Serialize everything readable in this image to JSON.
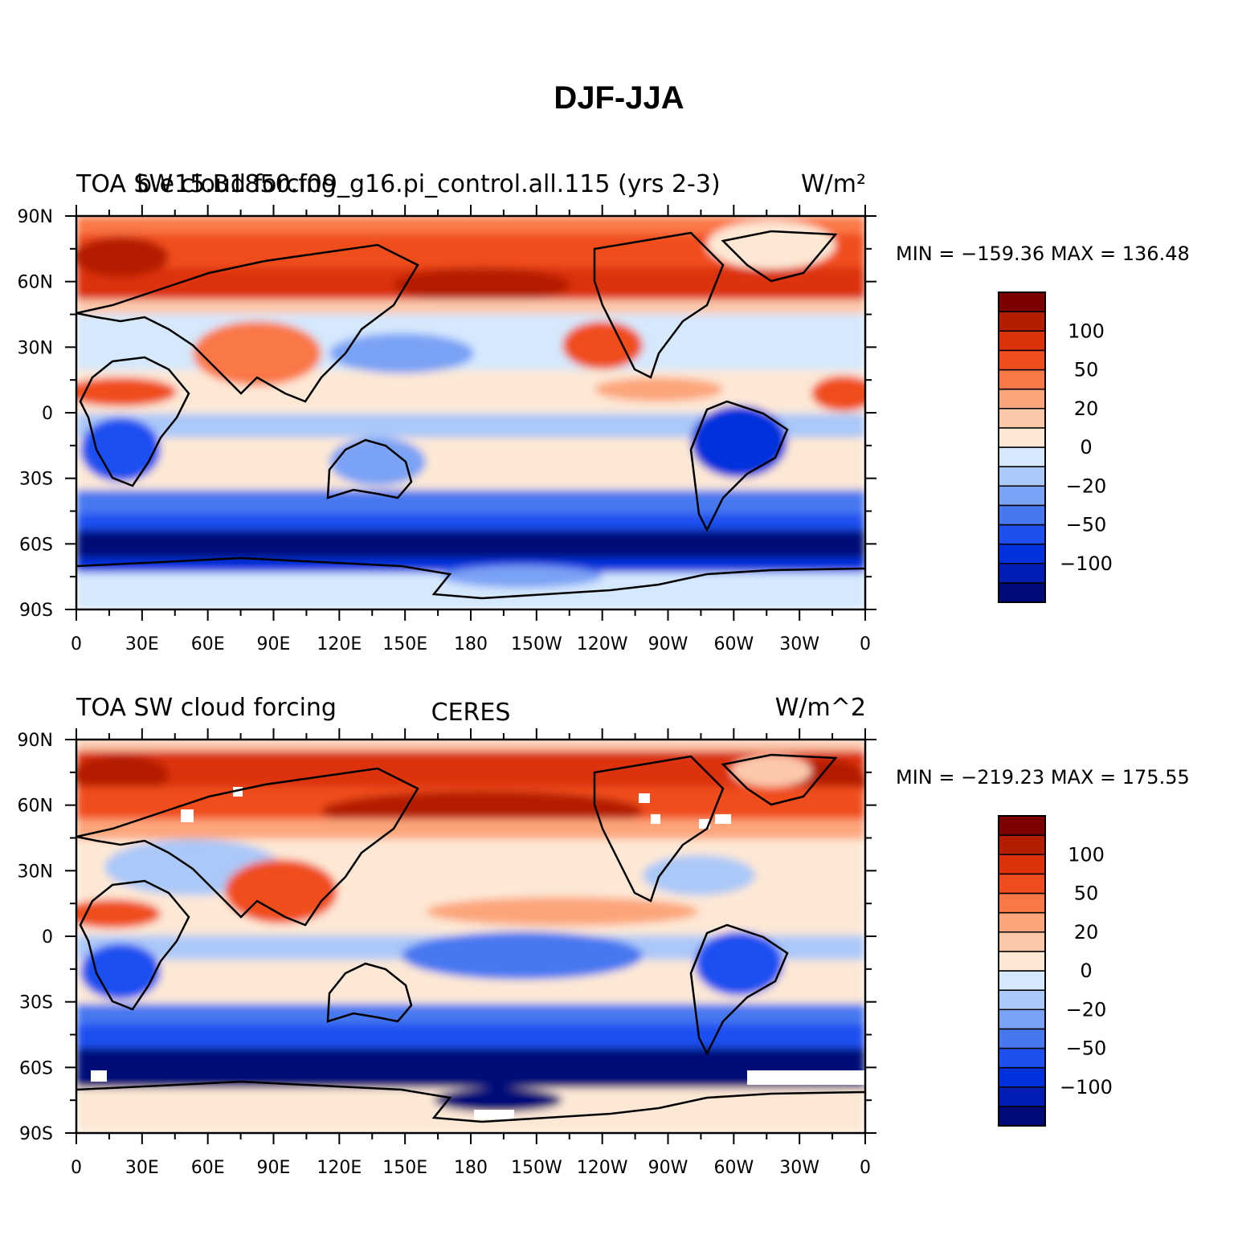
{
  "figure": {
    "title": "DJF-JJA"
  },
  "colors": {
    "levels": [
      "#000a78",
      "#001eb4",
      "#0032dc",
      "#1e50f0",
      "#4678f0",
      "#7aa2f5",
      "#aac8f8",
      "#d5e8fd",
      "#fde8d5",
      "#fcc8aa",
      "#fca57a",
      "#fa7846",
      "#f04d1e",
      "#dc320a",
      "#b41e00",
      "#7d0000"
    ]
  },
  "panels": [
    {
      "left_label": "TOA SW cloud forcing",
      "center_label": "b.e15.B1850.f09_g16.pi_control.all.115 (yrs 2-3)",
      "right_label": "W/m²",
      "stats": "MIN = −159.36  MAX = 136.48"
    },
    {
      "left_label": "TOA SW cloud forcing",
      "center_label": "CERES",
      "right_label": "W/m^2",
      "stats": "MIN = −219.23  MAX = 175.55"
    }
  ],
  "axes": {
    "lat_ticks": [
      "90N",
      "60N",
      "30N",
      "0",
      "30S",
      "60S",
      "90S"
    ],
    "lon_ticks": [
      "0",
      "30E",
      "60E",
      "90E",
      "120E",
      "150E",
      "180",
      "150W",
      "120W",
      "90W",
      "60W",
      "30W",
      "0"
    ]
  },
  "colorbar": {
    "labels": [
      "100",
      "50",
      "20",
      "0",
      "−20",
      "−50",
      "−100"
    ]
  }
}
